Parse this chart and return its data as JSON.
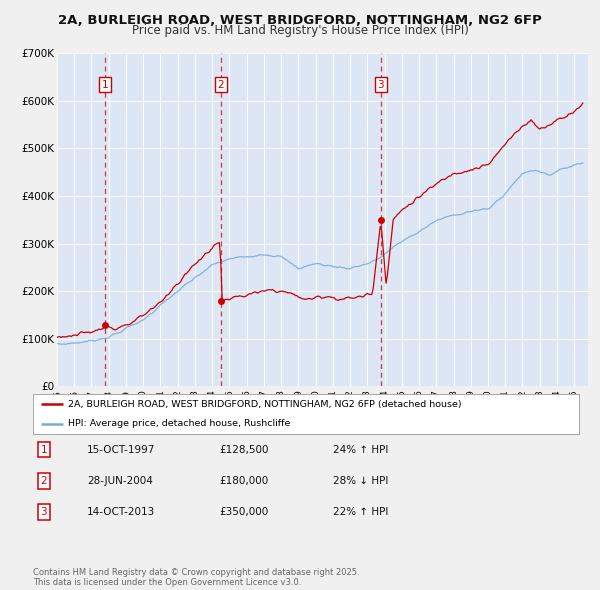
{
  "title_line1": "2A, BURLEIGH ROAD, WEST BRIDGFORD, NOTTINGHAM, NG2 6FP",
  "title_line2": "Price paid vs. HM Land Registry's House Price Index (HPI)",
  "title_fontsize": 9.5,
  "subtitle_fontsize": 8.5,
  "plot_bg_color": "#dce6f5",
  "outer_bg_color": "#f0f0f0",
  "xmin": 1995.0,
  "xmax": 2025.8,
  "ymin": 0,
  "ymax": 700000,
  "yticks": [
    0,
    100000,
    200000,
    300000,
    400000,
    500000,
    600000,
    700000
  ],
  "ytick_labels": [
    "£0",
    "£100K",
    "£200K",
    "£300K",
    "£400K",
    "£500K",
    "£600K",
    "£700K"
  ],
  "red_color": "#cc0000",
  "blue_color": "#7aadd4",
  "sale_dates": [
    1997.79,
    2004.49,
    2013.79
  ],
  "sale_prices": [
    128500,
    180000,
    350000
  ],
  "sale_labels": [
    "1",
    "2",
    "3"
  ],
  "legend_label_red": "2A, BURLEIGH ROAD, WEST BRIDGFORD, NOTTINGHAM, NG2 6FP (detached house)",
  "legend_label_blue": "HPI: Average price, detached house, Rushcliffe",
  "table_rows": [
    [
      "1",
      "15-OCT-1997",
      "£128,500",
      "24% ↑ HPI"
    ],
    [
      "2",
      "28-JUN-2004",
      "£180,000",
      "28% ↓ HPI"
    ],
    [
      "3",
      "14-OCT-2013",
      "£350,000",
      "22% ↑ HPI"
    ]
  ],
  "footer_text": "Contains HM Land Registry data © Crown copyright and database right 2025.\nThis data is licensed under the Open Government Licence v3.0.",
  "xtick_years": [
    1995,
    1996,
    1997,
    1998,
    1999,
    2000,
    2001,
    2002,
    2003,
    2004,
    2005,
    2006,
    2007,
    2008,
    2009,
    2010,
    2011,
    2012,
    2013,
    2014,
    2015,
    2016,
    2017,
    2018,
    2019,
    2020,
    2021,
    2022,
    2023,
    2024,
    2025
  ]
}
